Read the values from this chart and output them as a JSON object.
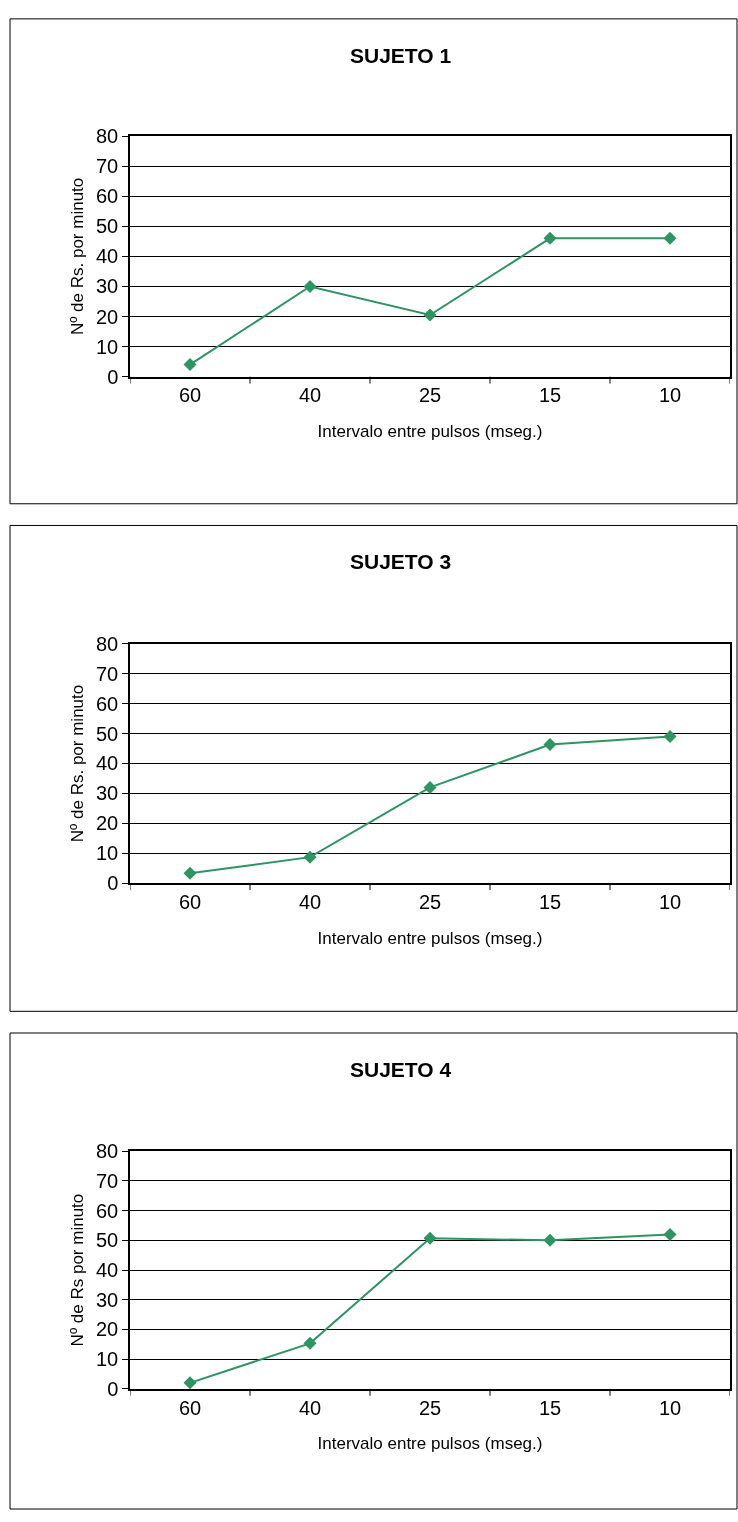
{
  "chart_data": [
    {
      "type": "line",
      "title": "SUJETO 1",
      "xlabel": "Intervalo entre pulsos (mseg.)",
      "ylabel": "Nº de Rs. por minuto",
      "categories": [
        "60",
        "40",
        "25",
        "15",
        "10"
      ],
      "series": [
        {
          "color": "#2e9462",
          "values": [
            4,
            30,
            20.5,
            46,
            46
          ]
        }
      ],
      "ylim": [
        0,
        80
      ],
      "yticks": [
        0,
        10,
        20,
        30,
        40,
        50,
        60,
        70,
        80
      ],
      "grid": "y",
      "marker": "diamond",
      "line_style": "solid"
    },
    {
      "type": "line",
      "title": "SUJETO 3",
      "xlabel": "Intervalo entre pulsos (mseg.)",
      "ylabel": "Nº de Rs. por minuto",
      "categories": [
        "60",
        "40",
        "25",
        "15",
        "10"
      ],
      "series": [
        {
          "color": "#2e9462",
          "values": [
            3.3,
            8.7,
            32,
            46.3,
            49
          ]
        }
      ],
      "ylim": [
        0,
        80
      ],
      "yticks": [
        0,
        10,
        20,
        30,
        40,
        50,
        60,
        70,
        80
      ],
      "grid": "y",
      "marker": "diamond",
      "line_style": "solid"
    },
    {
      "type": "line",
      "title": "SUJETO 4",
      "xlabel": "Intervalo entre pulsos (mseg.)",
      "ylabel": "Nº de Rs por minuto",
      "categories": [
        "60",
        "40",
        "25",
        "15",
        "10"
      ],
      "series": [
        {
          "color": "#2e9462",
          "values": [
            2,
            15.3,
            50.7,
            50,
            52
          ]
        }
      ],
      "ylim": [
        0,
        80
      ],
      "yticks": [
        0,
        10,
        20,
        30,
        40,
        50,
        60,
        70,
        80
      ],
      "grid": "y",
      "marker": "diamond",
      "line_style": "solid"
    }
  ]
}
